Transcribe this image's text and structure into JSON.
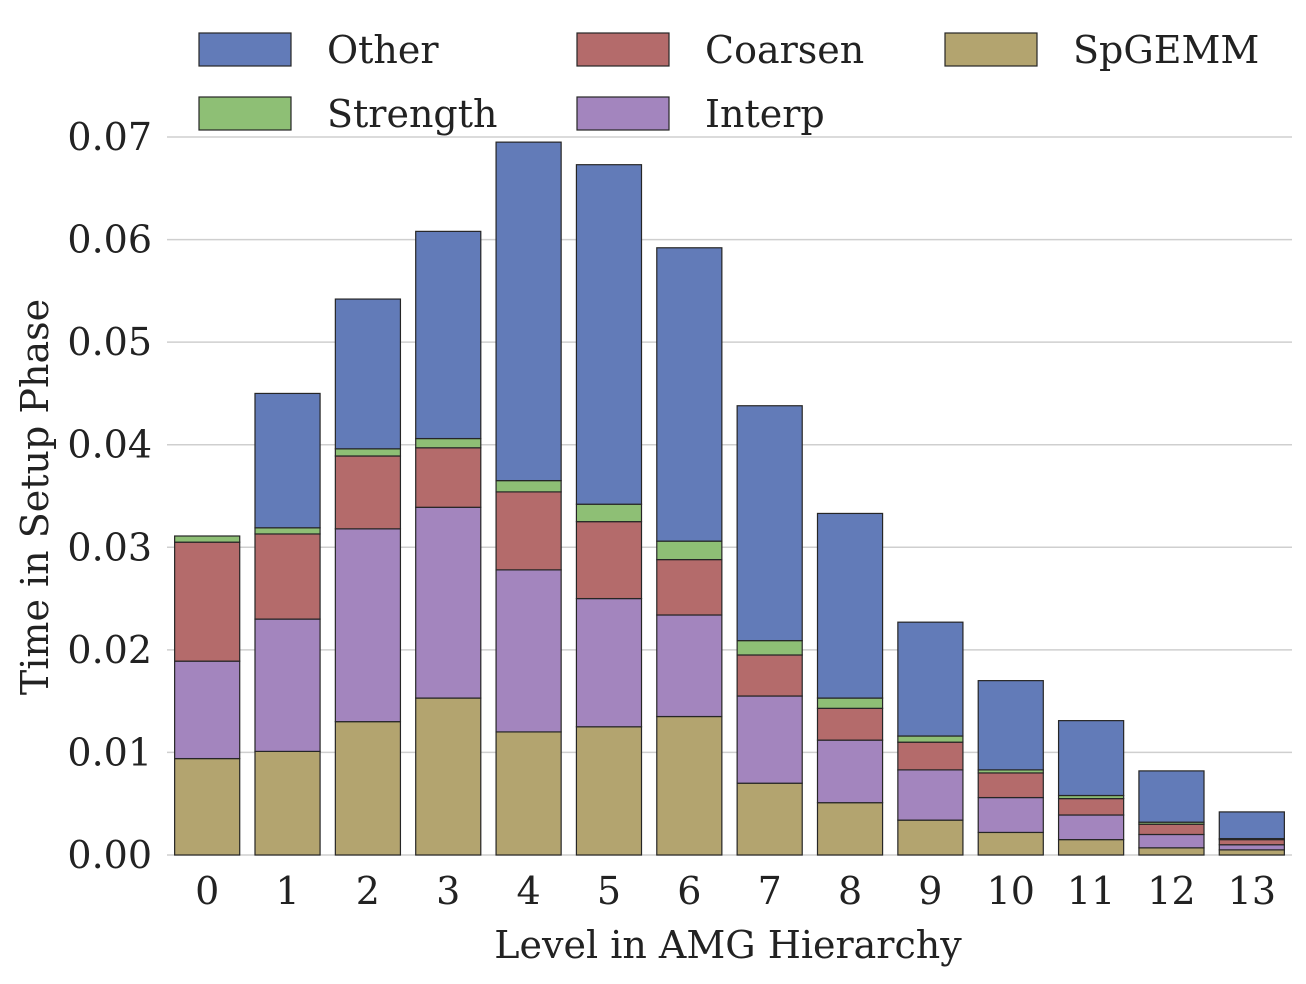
{
  "chart_data": {
    "type": "bar",
    "stacked": true,
    "xlabel": "Level in AMG Hierarchy",
    "ylabel": "Time in Setup Phase",
    "ylim": [
      0,
      0.07
    ],
    "yticks": [
      "0.00",
      "0.01",
      "0.02",
      "0.03",
      "0.04",
      "0.05",
      "0.06",
      "0.07"
    ],
    "categories": [
      "0",
      "1",
      "2",
      "3",
      "4",
      "5",
      "6",
      "7",
      "8",
      "9",
      "10",
      "11",
      "12",
      "13"
    ],
    "grid": "horizontal",
    "legend_position": "top",
    "legend_order": [
      "Other",
      "Coarsen",
      "SpGEMM",
      "Strength",
      "Interp"
    ],
    "series": [
      {
        "name": "SpGEMM",
        "color": "#b3a46f",
        "values": [
          0.0094,
          0.0101,
          0.013,
          0.0153,
          0.012,
          0.0125,
          0.0135,
          0.007,
          0.0051,
          0.0034,
          0.0022,
          0.0015,
          0.0007,
          0.0005
        ]
      },
      {
        "name": "Interp",
        "color": "#a385be",
        "values": [
          0.0095,
          0.0129,
          0.0188,
          0.0186,
          0.0158,
          0.0125,
          0.0099,
          0.0085,
          0.0061,
          0.0049,
          0.0034,
          0.0024,
          0.0013,
          0.0005
        ]
      },
      {
        "name": "Coarsen",
        "color": "#b46b6b",
        "values": [
          0.0116,
          0.0083,
          0.0071,
          0.0058,
          0.0076,
          0.0075,
          0.0054,
          0.004,
          0.0031,
          0.0027,
          0.0024,
          0.0016,
          0.001,
          0.0005
        ]
      },
      {
        "name": "Strength",
        "color": "#8ebf75",
        "values": [
          0.0006,
          0.0006,
          0.0007,
          0.0009,
          0.0011,
          0.0017,
          0.0018,
          0.0014,
          0.001,
          0.0006,
          0.0003,
          0.0003,
          0.0002,
          0.0001
        ]
      },
      {
        "name": "Other",
        "color": "#627bb8",
        "values": [
          0.0,
          0.0131,
          0.0146,
          0.0202,
          0.033,
          0.0331,
          0.0286,
          0.0229,
          0.018,
          0.0111,
          0.0087,
          0.0073,
          0.005,
          0.0026
        ]
      }
    ]
  }
}
